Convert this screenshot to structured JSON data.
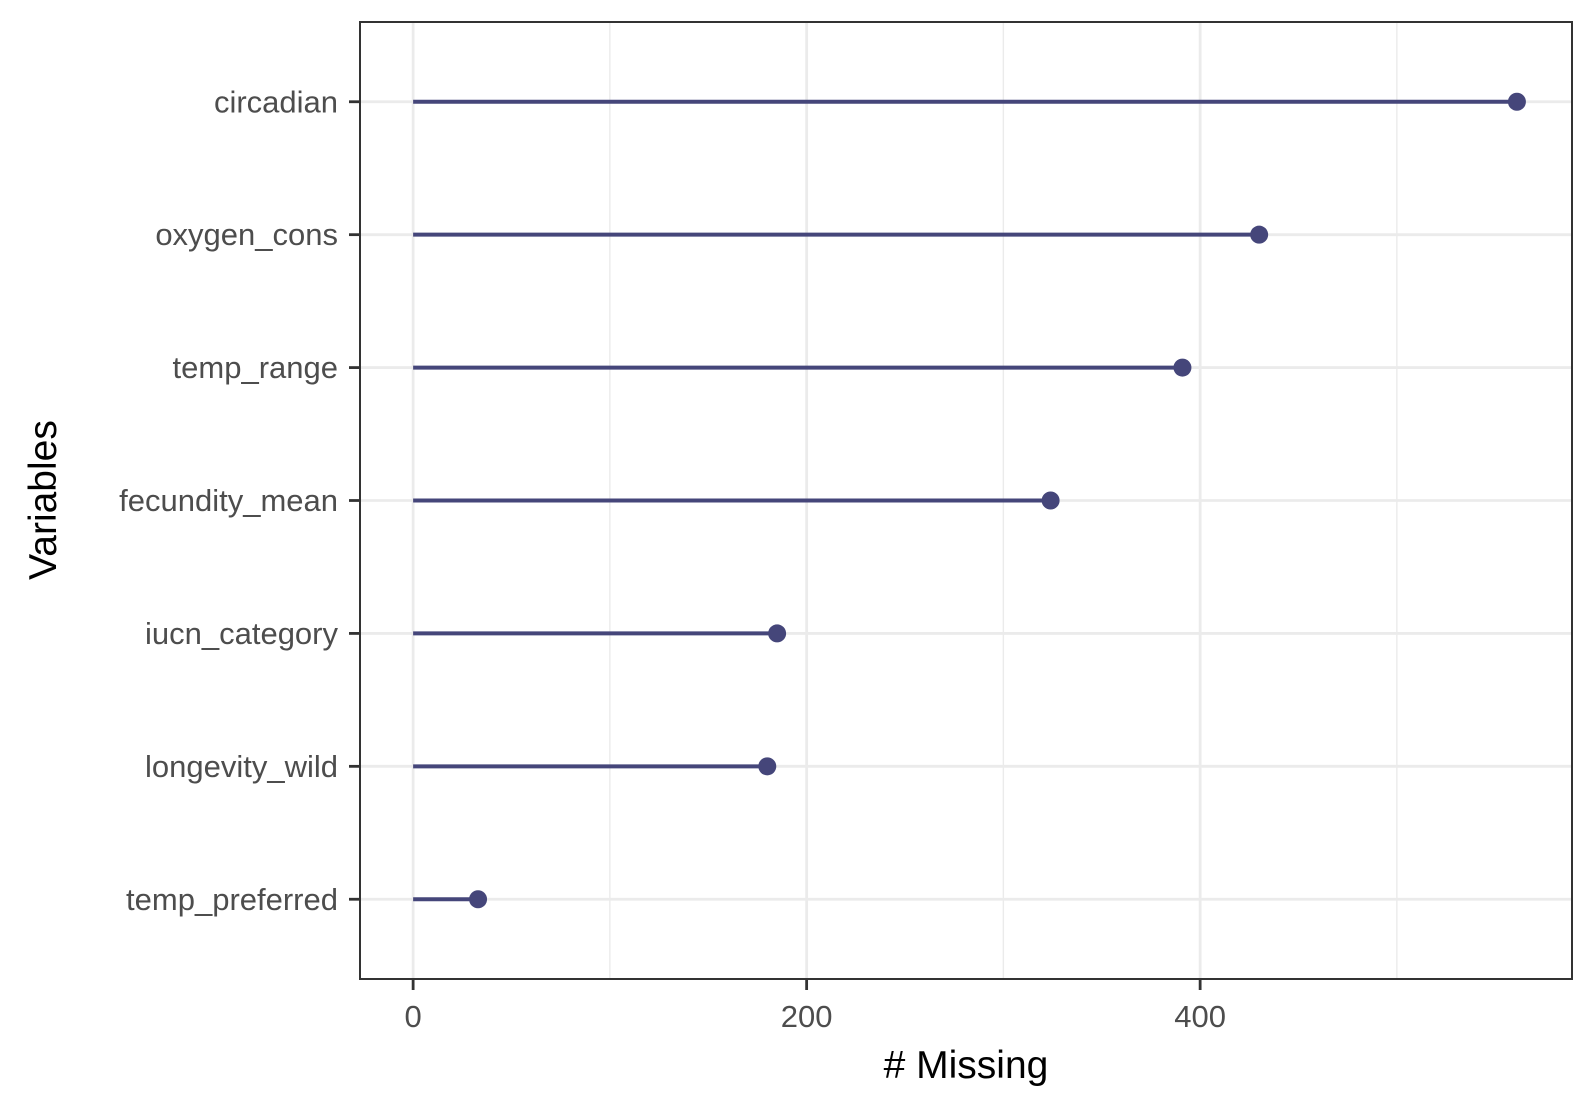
{
  "chart_data": {
    "type": "lollipop",
    "categories": [
      "circadian",
      "oxygen_cons",
      "temp_range",
      "fecundity_mean",
      "iucn_category",
      "longevity_wild",
      "temp_preferred"
    ],
    "values": [
      561,
      430,
      391,
      324,
      185,
      180,
      33
    ],
    "xlabel": "# Missing",
    "ylabel": "Variables",
    "xlim": [
      -27,
      589
    ],
    "x_ticks": [
      0,
      200,
      400
    ],
    "x_minor_ticks": [
      100,
      300,
      500
    ],
    "grid": true,
    "series_color": "#45467a",
    "grid_color": "#ebebeb",
    "panel_border_color": "#333333"
  }
}
